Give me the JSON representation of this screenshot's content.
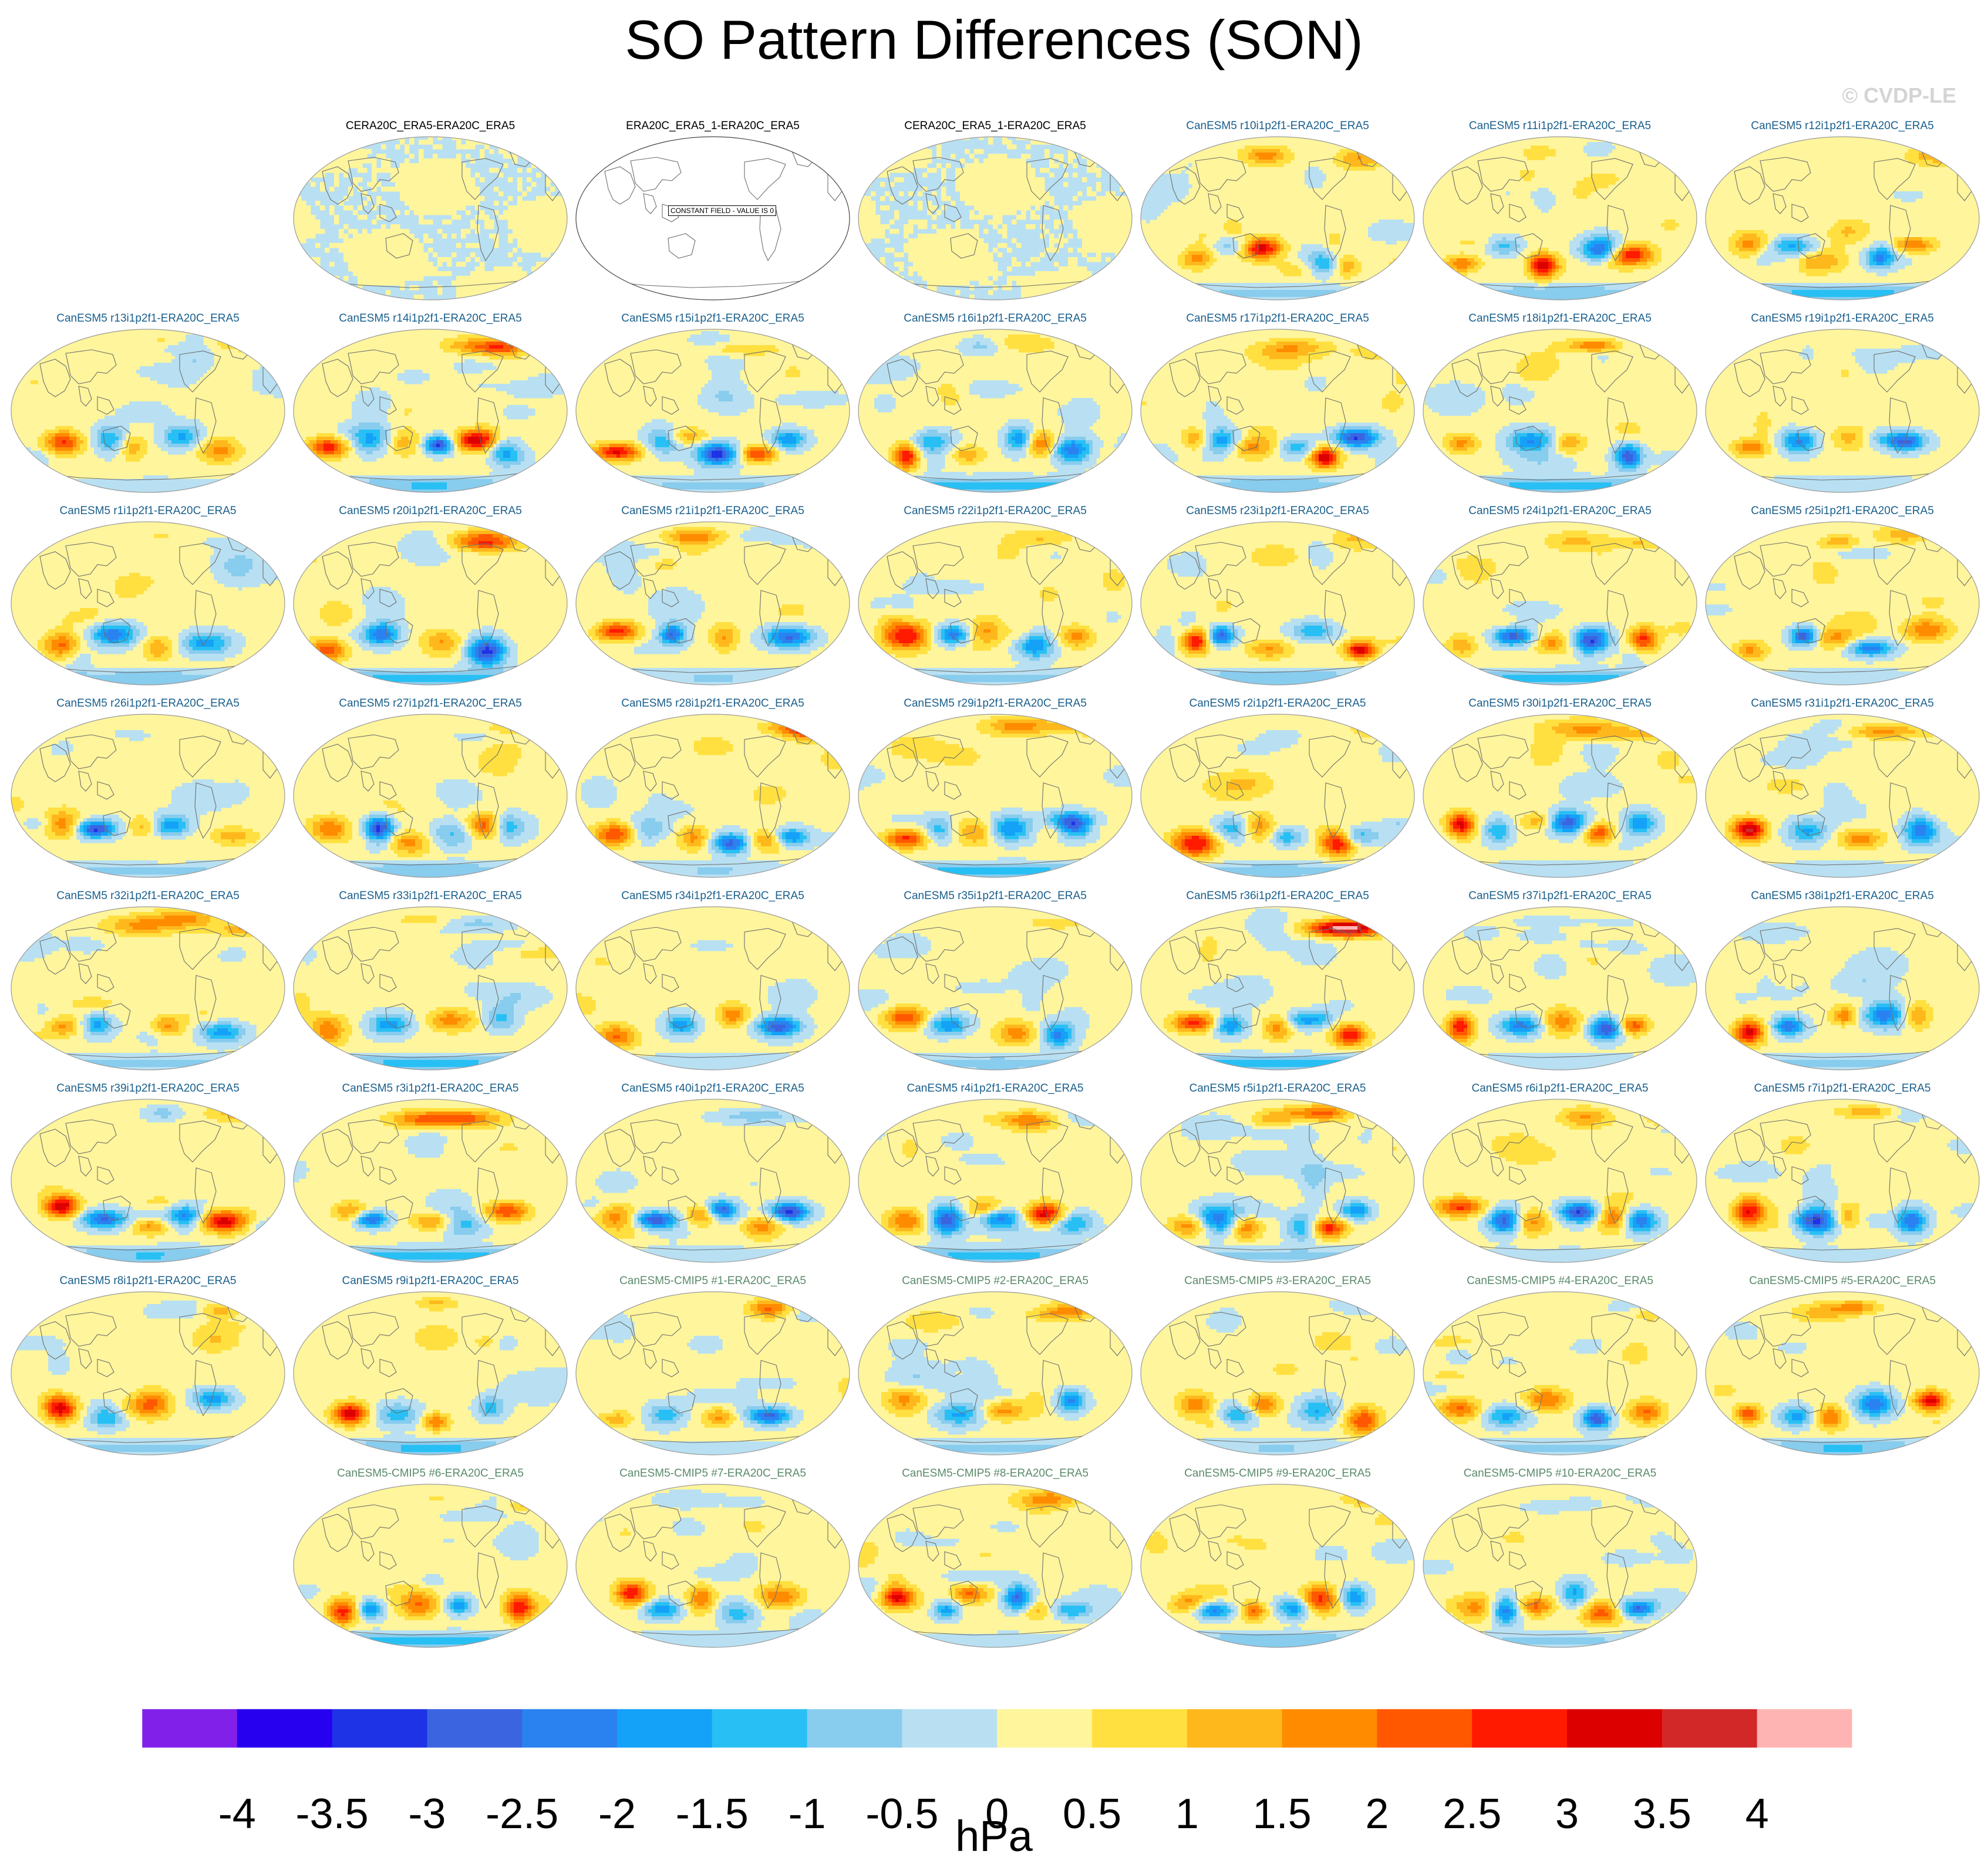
{
  "title": "SO Pattern Differences (SON)",
  "watermark": "© CVDP-LE",
  "colorbar": {
    "units": "hPa",
    "levels": [
      "-4",
      "-3.5",
      "-3",
      "-2.5",
      "-2",
      "-1.5",
      "-1",
      "-0.5",
      "0",
      "0.5",
      "1",
      "1.5",
      "2",
      "2.5",
      "3",
      "3.5",
      "4"
    ],
    "colors": [
      "#8020e8",
      "#2800f0",
      "#1e32e6",
      "#3a64e0",
      "#2a82f0",
      "#14a2f8",
      "#28c0f4",
      "#88ccee",
      "#b8e0f2",
      "#fff59c",
      "#ffe040",
      "#ffb81c",
      "#ff8c00",
      "#ff5800",
      "#ff1a00",
      "#dc0000",
      "#d22828",
      "#ffb4b4"
    ]
  },
  "chart_data": {
    "type": "heatmap",
    "title": "SO Pattern Differences (SON)",
    "units": "hPa",
    "value_range": [
      -4,
      4
    ],
    "contour_interval": 0.5,
    "season": "SON",
    "rows": [
      [
        {
          "label": "CERA20C_ERA5-ERA20C_ERA5",
          "group": "obs"
        },
        {
          "label": "ERA20C_ERA5_1-ERA20C_ERA5",
          "group": "obs",
          "message": "CONSTANT FIELD - VALUE IS 0"
        },
        {
          "label": "CERA20C_ERA5_1-ERA20C_ERA5",
          "group": "obs"
        },
        {
          "label": "CanESM5 r10i1p2f1-ERA20C_ERA5",
          "group": "member"
        },
        {
          "label": "CanESM5 r11i1p2f1-ERA20C_ERA5",
          "group": "member"
        },
        {
          "label": "CanESM5 r12i1p2f1-ERA20C_ERA5",
          "group": "member"
        }
      ],
      [
        {
          "label": "CanESM5 r13i1p2f1-ERA20C_ERA5",
          "group": "member"
        },
        {
          "label": "CanESM5 r14i1p2f1-ERA20C_ERA5",
          "group": "member"
        },
        {
          "label": "CanESM5 r15i1p2f1-ERA20C_ERA5",
          "group": "member"
        },
        {
          "label": "CanESM5 r16i1p2f1-ERA20C_ERA5",
          "group": "member"
        },
        {
          "label": "CanESM5 r17i1p2f1-ERA20C_ERA5",
          "group": "member"
        },
        {
          "label": "CanESM5 r18i1p2f1-ERA20C_ERA5",
          "group": "member"
        },
        {
          "label": "CanESM5 r19i1p2f1-ERA20C_ERA5",
          "group": "member"
        }
      ],
      [
        {
          "label": "CanESM5 r1i1p2f1-ERA20C_ERA5",
          "group": "member"
        },
        {
          "label": "CanESM5 r20i1p2f1-ERA20C_ERA5",
          "group": "member"
        },
        {
          "label": "CanESM5 r21i1p2f1-ERA20C_ERA5",
          "group": "member"
        },
        {
          "label": "CanESM5 r22i1p2f1-ERA20C_ERA5",
          "group": "member"
        },
        {
          "label": "CanESM5 r23i1p2f1-ERA20C_ERA5",
          "group": "member"
        },
        {
          "label": "CanESM5 r24i1p2f1-ERA20C_ERA5",
          "group": "member"
        },
        {
          "label": "CanESM5 r25i1p2f1-ERA20C_ERA5",
          "group": "member"
        }
      ],
      [
        {
          "label": "CanESM5 r26i1p2f1-ERA20C_ERA5",
          "group": "member"
        },
        {
          "label": "CanESM5 r27i1p2f1-ERA20C_ERA5",
          "group": "member"
        },
        {
          "label": "CanESM5 r28i1p2f1-ERA20C_ERA5",
          "group": "member"
        },
        {
          "label": "CanESM5 r29i1p2f1-ERA20C_ERA5",
          "group": "member"
        },
        {
          "label": "CanESM5 r2i1p2f1-ERA20C_ERA5",
          "group": "member"
        },
        {
          "label": "CanESM5 r30i1p2f1-ERA20C_ERA5",
          "group": "member"
        },
        {
          "label": "CanESM5 r31i1p2f1-ERA20C_ERA5",
          "group": "member"
        }
      ],
      [
        {
          "label": "CanESM5 r32i1p2f1-ERA20C_ERA5",
          "group": "member"
        },
        {
          "label": "CanESM5 r33i1p2f1-ERA20C_ERA5",
          "group": "member"
        },
        {
          "label": "CanESM5 r34i1p2f1-ERA20C_ERA5",
          "group": "member"
        },
        {
          "label": "CanESM5 r35i1p2f1-ERA20C_ERA5",
          "group": "member"
        },
        {
          "label": "CanESM5 r36i1p2f1-ERA20C_ERA5",
          "group": "member"
        },
        {
          "label": "CanESM5 r37i1p2f1-ERA20C_ERA5",
          "group": "member"
        },
        {
          "label": "CanESM5 r38i1p2f1-ERA20C_ERA5",
          "group": "member"
        }
      ],
      [
        {
          "label": "CanESM5 r39i1p2f1-ERA20C_ERA5",
          "group": "member"
        },
        {
          "label": "CanESM5 r3i1p2f1-ERA20C_ERA5",
          "group": "member"
        },
        {
          "label": "CanESM5 r40i1p2f1-ERA20C_ERA5",
          "group": "member"
        },
        {
          "label": "CanESM5 r4i1p2f1-ERA20C_ERA5",
          "group": "member"
        },
        {
          "label": "CanESM5 r5i1p2f1-ERA20C_ERA5",
          "group": "member"
        },
        {
          "label": "CanESM5 r6i1p2f1-ERA20C_ERA5",
          "group": "member"
        },
        {
          "label": "CanESM5 r7i1p2f1-ERA20C_ERA5",
          "group": "member"
        }
      ],
      [
        {
          "label": "CanESM5 r8i1p2f1-ERA20C_ERA5",
          "group": "member"
        },
        {
          "label": "CanESM5 r9i1p2f1-ERA20C_ERA5",
          "group": "member"
        },
        {
          "label": "CanESM5-CMIP5 #1-ERA20C_ERA5",
          "group": "cmip5"
        },
        {
          "label": "CanESM5-CMIP5 #2-ERA20C_ERA5",
          "group": "cmip5"
        },
        {
          "label": "CanESM5-CMIP5 #3-ERA20C_ERA5",
          "group": "cmip5"
        },
        {
          "label": "CanESM5-CMIP5 #4-ERA20C_ERA5",
          "group": "cmip5"
        },
        {
          "label": "CanESM5-CMIP5 #5-ERA20C_ERA5",
          "group": "cmip5"
        }
      ],
      [
        {
          "label": "CanESM5-CMIP5 #6-ERA20C_ERA5",
          "group": "cmip5"
        },
        {
          "label": "CanESM5-CMIP5 #7-ERA20C_ERA5",
          "group": "cmip5"
        },
        {
          "label": "CanESM5-CMIP5 #8-ERA20C_ERA5",
          "group": "cmip5"
        },
        {
          "label": "CanESM5-CMIP5 #9-ERA20C_ERA5",
          "group": "cmip5"
        },
        {
          "label": "CanESM5-CMIP5 #10-ERA20C_ERA5",
          "group": "cmip5"
        }
      ]
    ],
    "title_colors": {
      "obs": "#000000",
      "member": "#1a5f8c",
      "cmip5": "#5a8a6a"
    }
  }
}
